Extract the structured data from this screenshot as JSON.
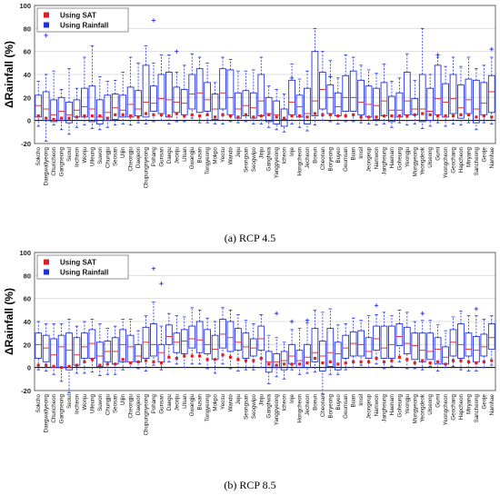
{
  "chart_data": [
    {
      "type": "box",
      "caption_label": "(a)",
      "caption_text": "RCP 4.5",
      "ylabel": "ΔRainfall (%)",
      "ylim": [
        -20,
        100
      ],
      "yticks": [
        -20,
        0,
        20,
        40,
        60,
        80,
        100
      ],
      "grid": true,
      "legend_position": "top-left",
      "legend": [
        {
          "label": "Using SAT",
          "color": "#e02020"
        },
        {
          "label": "Using Rainfall",
          "color": "#1f30e0"
        }
      ],
      "categories": [
        "Sokcho",
        "Daegwallyeong",
        "Chuncheon",
        "Gangneung",
        "Seoul",
        "Incheon",
        "Wonju",
        "Ulleung",
        "Suwon",
        "Chungju",
        "Seosan",
        "Uljin",
        "Cheongju",
        "Daejeon",
        "Chupungnyeong",
        "Pohang",
        "Gunsan",
        "Daegu",
        "Jeonju",
        "Ulsan",
        "Gwangju",
        "Busan",
        "Tongyeong",
        "Mokpo",
        "Yeosu",
        "Wando",
        "Jeju",
        "Seongsan",
        "Seogwipo",
        "Jinju",
        "Ganghwa",
        "Yangpyeong",
        "Icheon",
        "Inje",
        "Hongcheon",
        "Jecheon",
        "Boeun",
        "Cheonan",
        "Boryeong",
        "Buyeo",
        "Geumsan",
        "Buan",
        "Imsil",
        "Jeongeup",
        "Namwon",
        "Jangheung",
        "Haenam",
        "Goheung",
        "Yeongju",
        "Mungyeong",
        "Yeongdeok",
        "Uiseong",
        "Gumi",
        "Yeongcheon",
        "Geochang",
        "Hapcheon",
        "Miryang",
        "Sancheong",
        "Geoje",
        "Namhae"
      ],
      "boxes": {
        "min": [
          -5,
          -18,
          -4,
          -8,
          -12,
          -6,
          -4,
          -7,
          -8,
          -6,
          -4,
          -3,
          -4,
          -2,
          -3,
          -1,
          0,
          -3,
          -1,
          -1,
          2,
          -2,
          -2,
          -3,
          -3,
          -1,
          -2,
          -1,
          -3,
          -3,
          -6,
          -8,
          -10,
          -3,
          -6,
          -9,
          -4,
          0,
          -1,
          -3,
          -1,
          -1,
          -2,
          -3,
          -4,
          -3,
          -6,
          -2,
          -4,
          -3,
          -7,
          -5,
          -2,
          -5,
          -3,
          -4,
          -2,
          -8,
          -2,
          -3
        ],
        "q1": [
          3,
          0,
          -1,
          0,
          -2,
          3,
          3,
          -1,
          -3,
          0,
          1,
          3,
          3,
          4,
          3,
          8,
          6,
          3,
          7,
          5,
          10,
          7,
          8,
          1,
          10,
          5,
          2,
          4,
          2,
          4,
          -1,
          -3,
          -5,
          5,
          3,
          -3,
          4,
          10,
          6,
          4,
          8,
          8,
          5,
          3,
          1,
          4,
          -1,
          3,
          5,
          5,
          -1,
          0,
          5,
          3,
          6,
          2,
          6,
          -2,
          5,
          7
        ],
        "median": [
          13,
          10,
          5,
          8,
          5,
          9,
          12,
          10,
          3,
          7,
          11,
          9,
          14,
          10,
          16,
          15,
          19,
          18,
          16,
          15,
          23,
          24,
          18,
          10,
          24,
          20,
          10,
          13,
          11,
          17,
          6,
          5,
          1,
          16,
          12,
          6,
          17,
          27,
          20,
          12,
          20,
          20,
          16,
          14,
          13,
          17,
          9,
          9,
          17,
          10,
          10,
          8,
          19,
          16,
          19,
          11,
          18,
          10,
          15,
          25
        ],
        "q3": [
          22,
          25,
          18,
          20,
          16,
          18,
          28,
          30,
          18,
          22,
          23,
          22,
          29,
          26,
          48,
          30,
          40,
          42,
          29,
          27,
          40,
          45,
          33,
          23,
          45,
          44,
          24,
          26,
          24,
          40,
          20,
          17,
          10,
          35,
          22,
          28,
          60,
          42,
          31,
          24,
          39,
          43,
          35,
          30,
          28,
          33,
          21,
          24,
          42,
          19,
          40,
          28,
          48,
          32,
          40,
          31,
          36,
          35,
          33,
          39
        ],
        "max": [
          34,
          40,
          43,
          27,
          45,
          28,
          55,
          65,
          38,
          34,
          35,
          42,
          55,
          50,
          65,
          50,
          57,
          57,
          42,
          48,
          58,
          55,
          50,
          33,
          55,
          53,
          43,
          43,
          44,
          55,
          30,
          27,
          23,
          49,
          36,
          43,
          80,
          60,
          52,
          37,
          57,
          55,
          48,
          44,
          41,
          49,
          34,
          37,
          58,
          35,
          80,
          40,
          55,
          47,
          55,
          47,
          55,
          45,
          48,
          55
        ],
        "sat": [
          4,
          2,
          1,
          2,
          2,
          3,
          4,
          4,
          4,
          2,
          5,
          5,
          4,
          3,
          6,
          5,
          5,
          4,
          6,
          4,
          5,
          4,
          5,
          3,
          5,
          4,
          3,
          5,
          3,
          4,
          5,
          3,
          2,
          4,
          4,
          3,
          6,
          5,
          5,
          4,
          4,
          5,
          3,
          3,
          3,
          4,
          4,
          4,
          4,
          5,
          6,
          5,
          4,
          4,
          4,
          5,
          5,
          3,
          4,
          3
        ]
      },
      "outliers": [
        {
          "category": "Daegwallyeong",
          "value": 74
        },
        {
          "category": "Pohang",
          "value": 87
        },
        {
          "category": "Jeonju",
          "value": 60
        },
        {
          "category": "Inje",
          "value": 37
        },
        {
          "category": "Boryeong",
          "value": 38
        },
        {
          "category": "Gumi",
          "value": 57
        },
        {
          "category": "Namhae",
          "value": 62
        }
      ]
    },
    {
      "type": "box",
      "caption_label": "(b)",
      "caption_text": "RCP 8.5",
      "ylabel": "ΔRainfall (%)",
      "ylim": [
        -20,
        100
      ],
      "yticks": [
        -20,
        0,
        20,
        40,
        60,
        80,
        100
      ],
      "grid": true,
      "legend_position": "top-left",
      "legend": [
        {
          "label": "Using SAT",
          "color": "#e02020"
        },
        {
          "label": "Using Rainfall",
          "color": "#1f30e0"
        }
      ],
      "categories": [
        "Sokcho",
        "Daegwallyeong",
        "Chuncheon",
        "Gangneung",
        "Seoul",
        "Incheon",
        "Wonju",
        "Ulleung",
        "Suwon",
        "Chungju",
        "Seosan",
        "Uljin",
        "Cheongju",
        "Daejeon",
        "Chupungnyeong",
        "Pohang",
        "Gunsan",
        "Daegu",
        "Jeonju",
        "Ulsan",
        "Gwangju",
        "Busan",
        "Tongyeong",
        "Mokpo",
        "Yeosu",
        "Wando",
        "Jeju",
        "Seongsan",
        "Seogwipo",
        "Jinju",
        "Ganghwa",
        "Yangpyeong",
        "Icheon",
        "Inje",
        "Hongcheon",
        "Jecheon",
        "Boeun",
        "Cheonan",
        "Boryeong",
        "Buyeo",
        "Geumsan",
        "Buan",
        "Imsil",
        "Jeongeup",
        "Namwon",
        "Jangheung",
        "Haenam",
        "Goheung",
        "Yeongju",
        "Mungyeong",
        "Yeongdeok",
        "Uiseong",
        "Gumi",
        "Yeongcheon",
        "Geochang",
        "Hapcheon",
        "Miryang",
        "Sancheong",
        "Geoje",
        "Namhae"
      ],
      "boxes": {
        "min": [
          -2,
          -3,
          -6,
          -12,
          -22,
          -5,
          -5,
          -4,
          -7,
          -6,
          -6,
          -2,
          0,
          -1,
          -3,
          2,
          -2,
          5,
          3,
          0,
          3,
          3,
          -1,
          -5,
          3,
          -1,
          -3,
          -2,
          -2,
          0,
          -14,
          -8,
          -10,
          -2,
          -6,
          -5,
          -4,
          -23,
          -6,
          -6,
          -2,
          0,
          2,
          0,
          3,
          -1,
          1,
          5,
          -1,
          -1,
          -2,
          1,
          -3,
          0,
          1,
          -2,
          -3,
          -3,
          0,
          2
        ],
        "q1": [
          8,
          5,
          0,
          0,
          -2,
          2,
          8,
          8,
          1,
          5,
          3,
          5,
          5,
          5,
          8,
          10,
          5,
          20,
          13,
          12,
          17,
          13,
          12,
          7,
          17,
          14,
          15,
          8,
          10,
          15,
          -4,
          0,
          -2,
          3,
          0,
          0,
          5,
          -3,
          1,
          -2,
          8,
          10,
          10,
          8,
          15,
          8,
          8,
          19,
          12,
          7,
          5,
          7,
          3,
          3,
          10,
          8,
          10,
          5,
          10,
          16
        ],
        "median": [
          20,
          17,
          11,
          18,
          15,
          11,
          18,
          21,
          10,
          14,
          14,
          20,
          18,
          10,
          22,
          20,
          13,
          27,
          22,
          23,
          25,
          24,
          20,
          16,
          29,
          26,
          22,
          18,
          17,
          25,
          5,
          5,
          6,
          10,
          6,
          9,
          13,
          10,
          13,
          12,
          17,
          21,
          20,
          14,
          25,
          17,
          20,
          27,
          21,
          19,
          15,
          14,
          16,
          9,
          22,
          20,
          16,
          15,
          18,
          26
        ],
        "q3": [
          30,
          28,
          25,
          28,
          30,
          26,
          30,
          33,
          22,
          23,
          26,
          33,
          28,
          20,
          35,
          38,
          20,
          37,
          30,
          33,
          36,
          40,
          33,
          28,
          42,
          40,
          34,
          30,
          25,
          36,
          14,
          12,
          14,
          20,
          15,
          20,
          34,
          23,
          34,
          22,
          28,
          31,
          32,
          26,
          36,
          36,
          36,
          38,
          35,
          30,
          30,
          30,
          26,
          18,
          33,
          38,
          30,
          27,
          29,
          38
        ],
        "max": [
          40,
          38,
          38,
          38,
          42,
          36,
          40,
          42,
          38,
          34,
          36,
          42,
          42,
          32,
          45,
          57,
          36,
          47,
          45,
          44,
          52,
          50,
          43,
          40,
          52,
          50,
          46,
          41,
          38,
          46,
          28,
          26,
          22,
          33,
          34,
          39,
          50,
          48,
          51,
          37,
          38,
          43,
          41,
          45,
          46,
          48,
          45,
          50,
          48,
          40,
          41,
          41,
          37,
          32,
          44,
          49,
          45,
          45,
          42,
          45
        ],
        "sat": [
          2,
          2,
          1,
          0,
          1,
          2,
          5,
          7,
          2,
          3,
          3,
          7,
          4,
          5,
          6,
          5,
          4,
          9,
          8,
          10,
          10,
          10,
          7,
          7,
          11,
          9,
          7,
          6,
          6,
          8,
          3,
          2,
          3,
          3,
          3,
          4,
          8,
          4,
          5,
          3,
          4,
          5,
          5,
          5,
          8,
          5,
          6,
          9,
          7,
          4,
          6,
          4,
          5,
          3,
          6,
          6,
          5,
          4,
          5,
          6
        ]
      },
      "outliers": [
        {
          "category": "Pohang",
          "value": 86
        },
        {
          "category": "Gunsan",
          "value": 73
        },
        {
          "category": "Yangpyeong",
          "value": 47
        },
        {
          "category": "Inje",
          "value": 40
        },
        {
          "category": "Jecheon",
          "value": 41
        },
        {
          "category": "Namwon",
          "value": 54
        },
        {
          "category": "Yeongdeok",
          "value": 47
        },
        {
          "category": "Sancheong",
          "value": 51
        }
      ]
    }
  ]
}
